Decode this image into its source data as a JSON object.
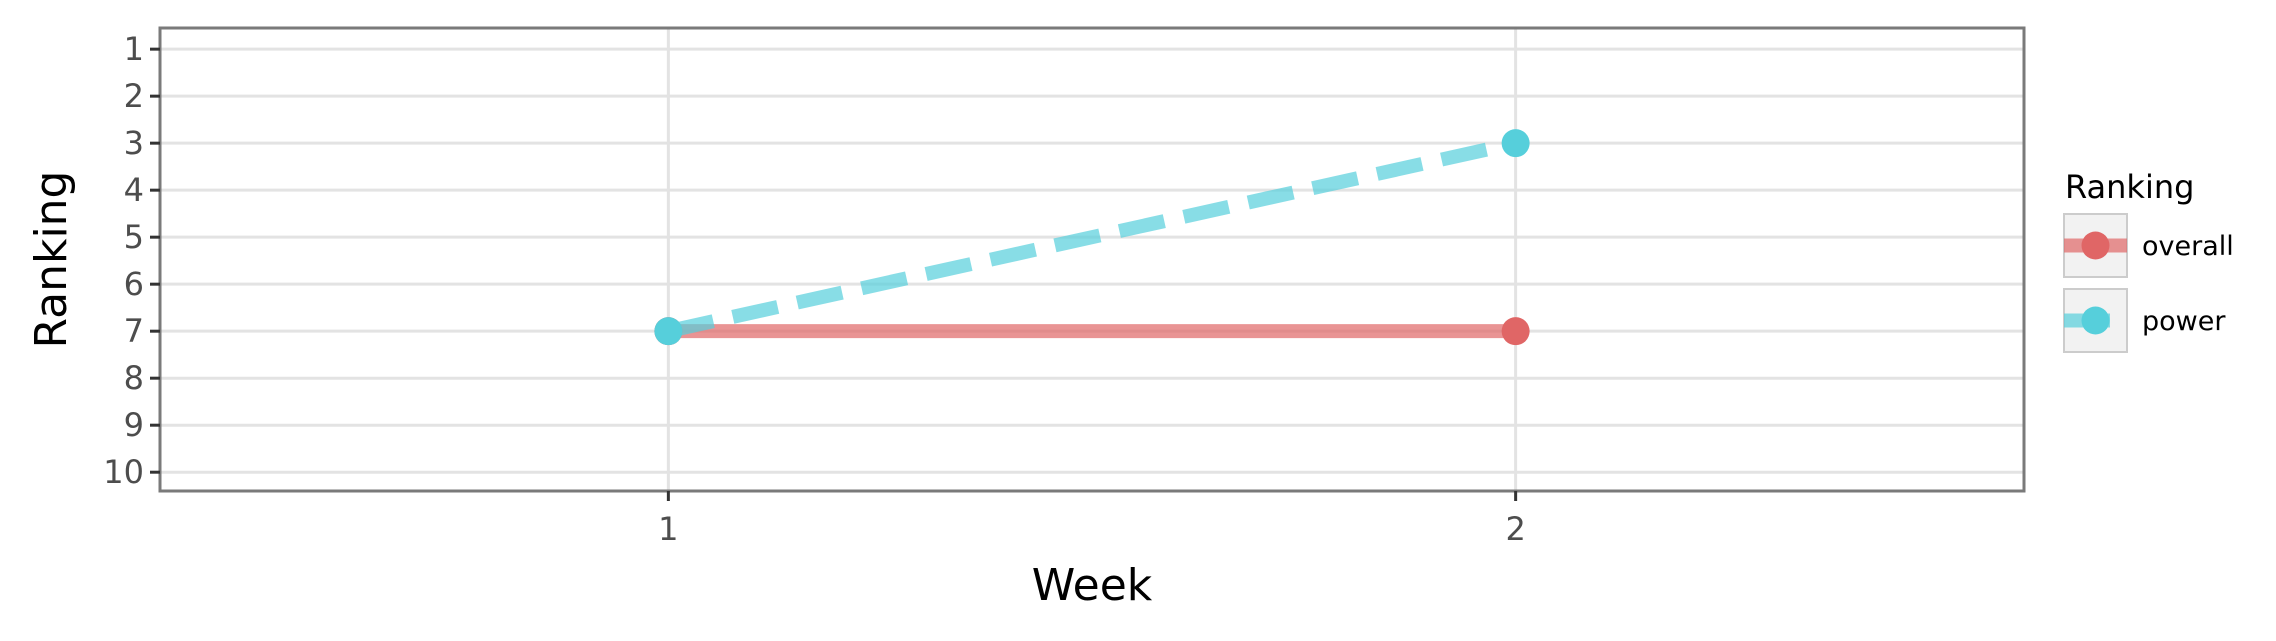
{
  "chart_data": {
    "type": "line",
    "xlabel": "Week",
    "ylabel": "Ranking",
    "x": [
      1,
      2
    ],
    "xlim": [
      0.4,
      2.6
    ],
    "ylim": [
      10.4,
      0.55
    ],
    "y_reversed": true,
    "x_ticks": [
      1,
      2
    ],
    "y_ticks": [
      1,
      2,
      3,
      4,
      5,
      6,
      7,
      8,
      9,
      10
    ],
    "grid": true,
    "legend": {
      "title": "Ranking",
      "position": "right"
    },
    "series": [
      {
        "name": "overall",
        "values": [
          7,
          7
        ],
        "color": "#e06666",
        "line_style": "solid"
      },
      {
        "name": "power",
        "values": [
          7,
          3
        ],
        "color": "#56cfdb",
        "line_style": "dashed"
      }
    ]
  }
}
